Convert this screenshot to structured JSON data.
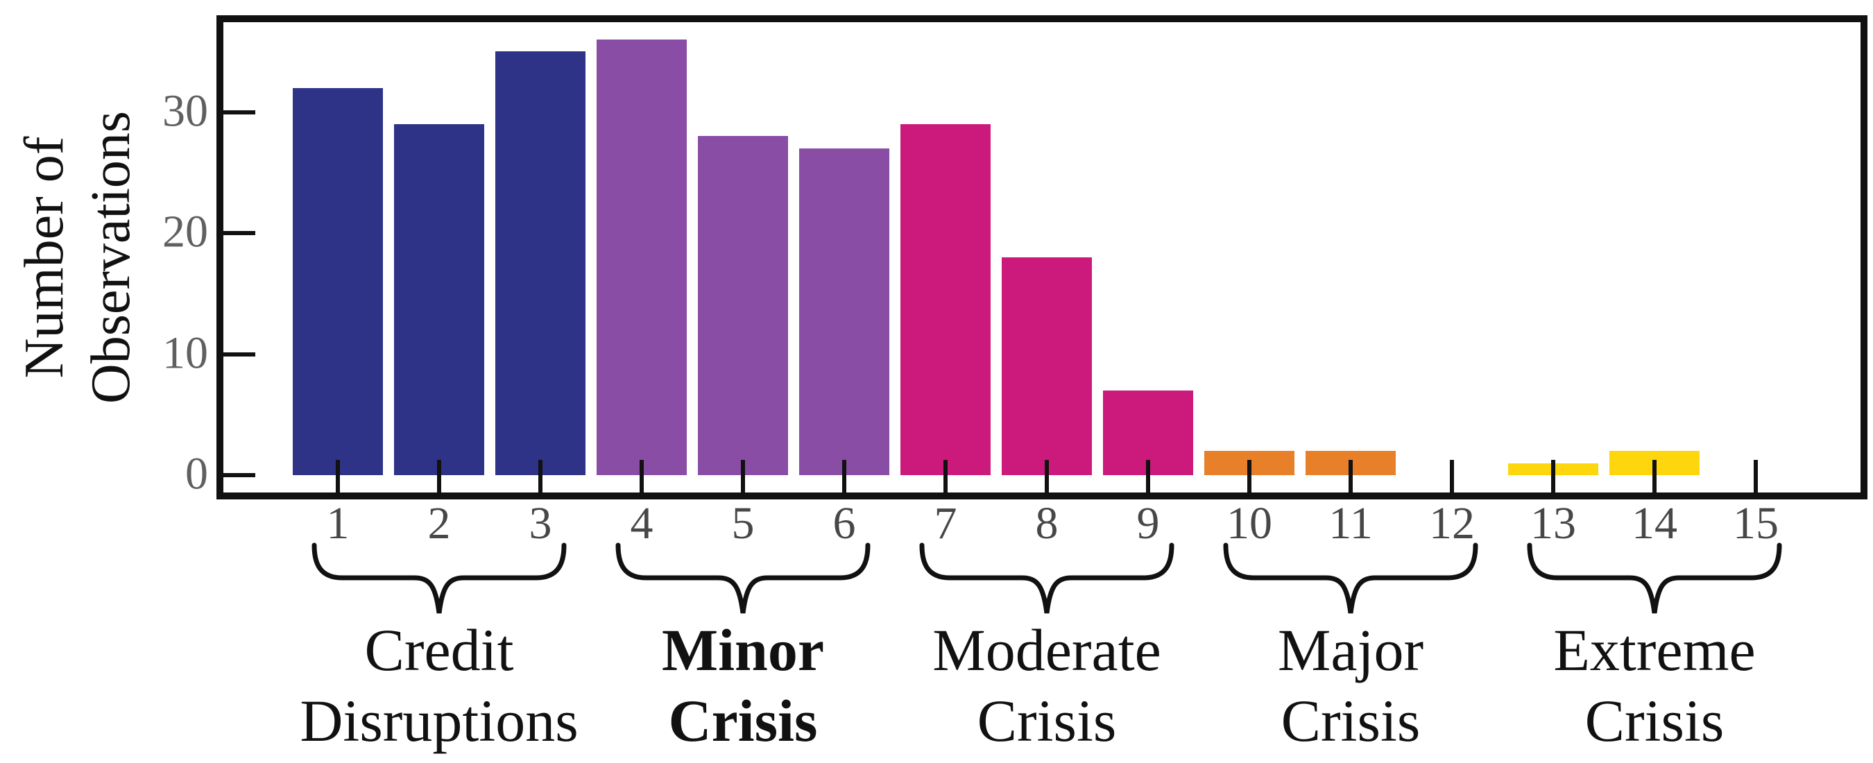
{
  "chart_data": {
    "type": "bar",
    "title": "",
    "xlabel": "",
    "ylabel_lines": [
      "Number of",
      "Observations"
    ],
    "x": [
      1,
      2,
      3,
      4,
      5,
      6,
      7,
      8,
      9,
      10,
      11,
      12,
      13,
      14,
      15
    ],
    "values": [
      32,
      29,
      35,
      36,
      28,
      27,
      29,
      18,
      7,
      2,
      2,
      0,
      1,
      2,
      0
    ],
    "groups": [
      {
        "name": "credit-disruptions",
        "label_lines": [
          "Credit",
          "Disruptions"
        ],
        "bold": false,
        "x_range": [
          1,
          3
        ],
        "color": "#2e3387"
      },
      {
        "name": "minor-crisis",
        "label_lines": [
          "Minor",
          "Crisis"
        ],
        "bold": true,
        "x_range": [
          4,
          6
        ],
        "color": "#8a4da6"
      },
      {
        "name": "moderate-crisis",
        "label_lines": [
          "Moderate",
          "Crisis"
        ],
        "bold": false,
        "x_range": [
          7,
          9
        ],
        "color": "#cc1a7c"
      },
      {
        "name": "major-crisis",
        "label_lines": [
          "Major",
          "Crisis"
        ],
        "bold": false,
        "x_range": [
          10,
          12
        ],
        "color": "#e8802a"
      },
      {
        "name": "extreme-crisis",
        "label_lines": [
          "Extreme",
          "Crisis"
        ],
        "bold": false,
        "x_range": [
          13,
          15
        ],
        "color": "#fdd60d"
      }
    ],
    "xticks": [
      1,
      2,
      3,
      4,
      5,
      6,
      7,
      8,
      9,
      10,
      11,
      12,
      13,
      14,
      15
    ],
    "yticks": [
      0,
      10,
      20,
      30
    ],
    "xlim": [
      -0.1,
      16.05
    ],
    "ylim": [
      -1.8,
      37.5
    ],
    "grid": false,
    "legend": "none",
    "tick_direction": "in",
    "frame": "full-box"
  },
  "colors": {
    "background": "#ffffff",
    "axis": "#111111",
    "x_tick_label": "#474747",
    "y_tick_label": "#606060",
    "annotation_text": "#111111"
  }
}
